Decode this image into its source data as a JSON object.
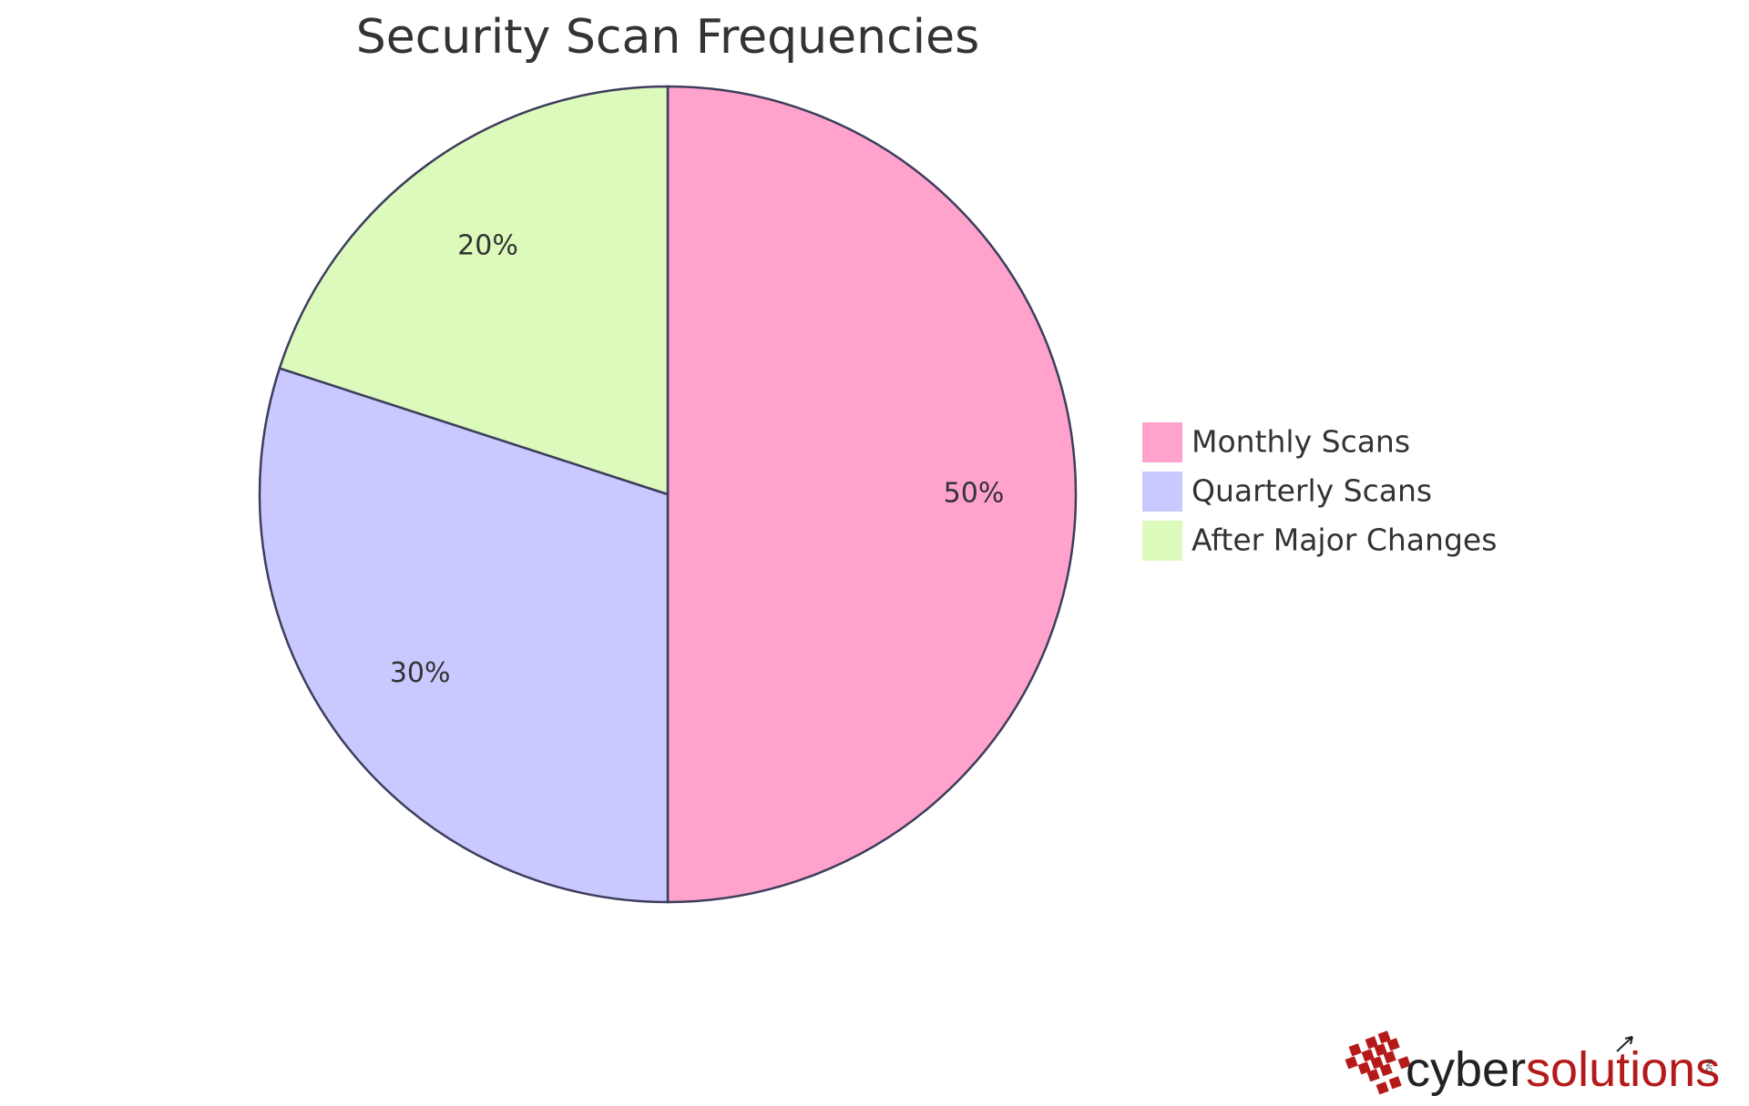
{
  "chart_data": {
    "type": "pie",
    "title": "Security Scan Frequencies",
    "slices": [
      {
        "label": "Monthly Scans",
        "value": 50,
        "display": "50%",
        "color": "#ffa3cc"
      },
      {
        "label": "Quarterly Scans",
        "value": 30,
        "display": "30%",
        "color": "#c9c9ff"
      },
      {
        "label": "After Major Changes",
        "value": 20,
        "display": "20%",
        "color": "#dbfabb"
      }
    ],
    "start_angle_deg": 0,
    "direction": "clockwise",
    "legend_position": "right",
    "stroke_color": "#3d3d5c"
  },
  "logo": {
    "part1": "cyber",
    "part2": "solutions",
    "suffix": "INC",
    "color1": "#222222",
    "color2": "#b51a1a"
  }
}
